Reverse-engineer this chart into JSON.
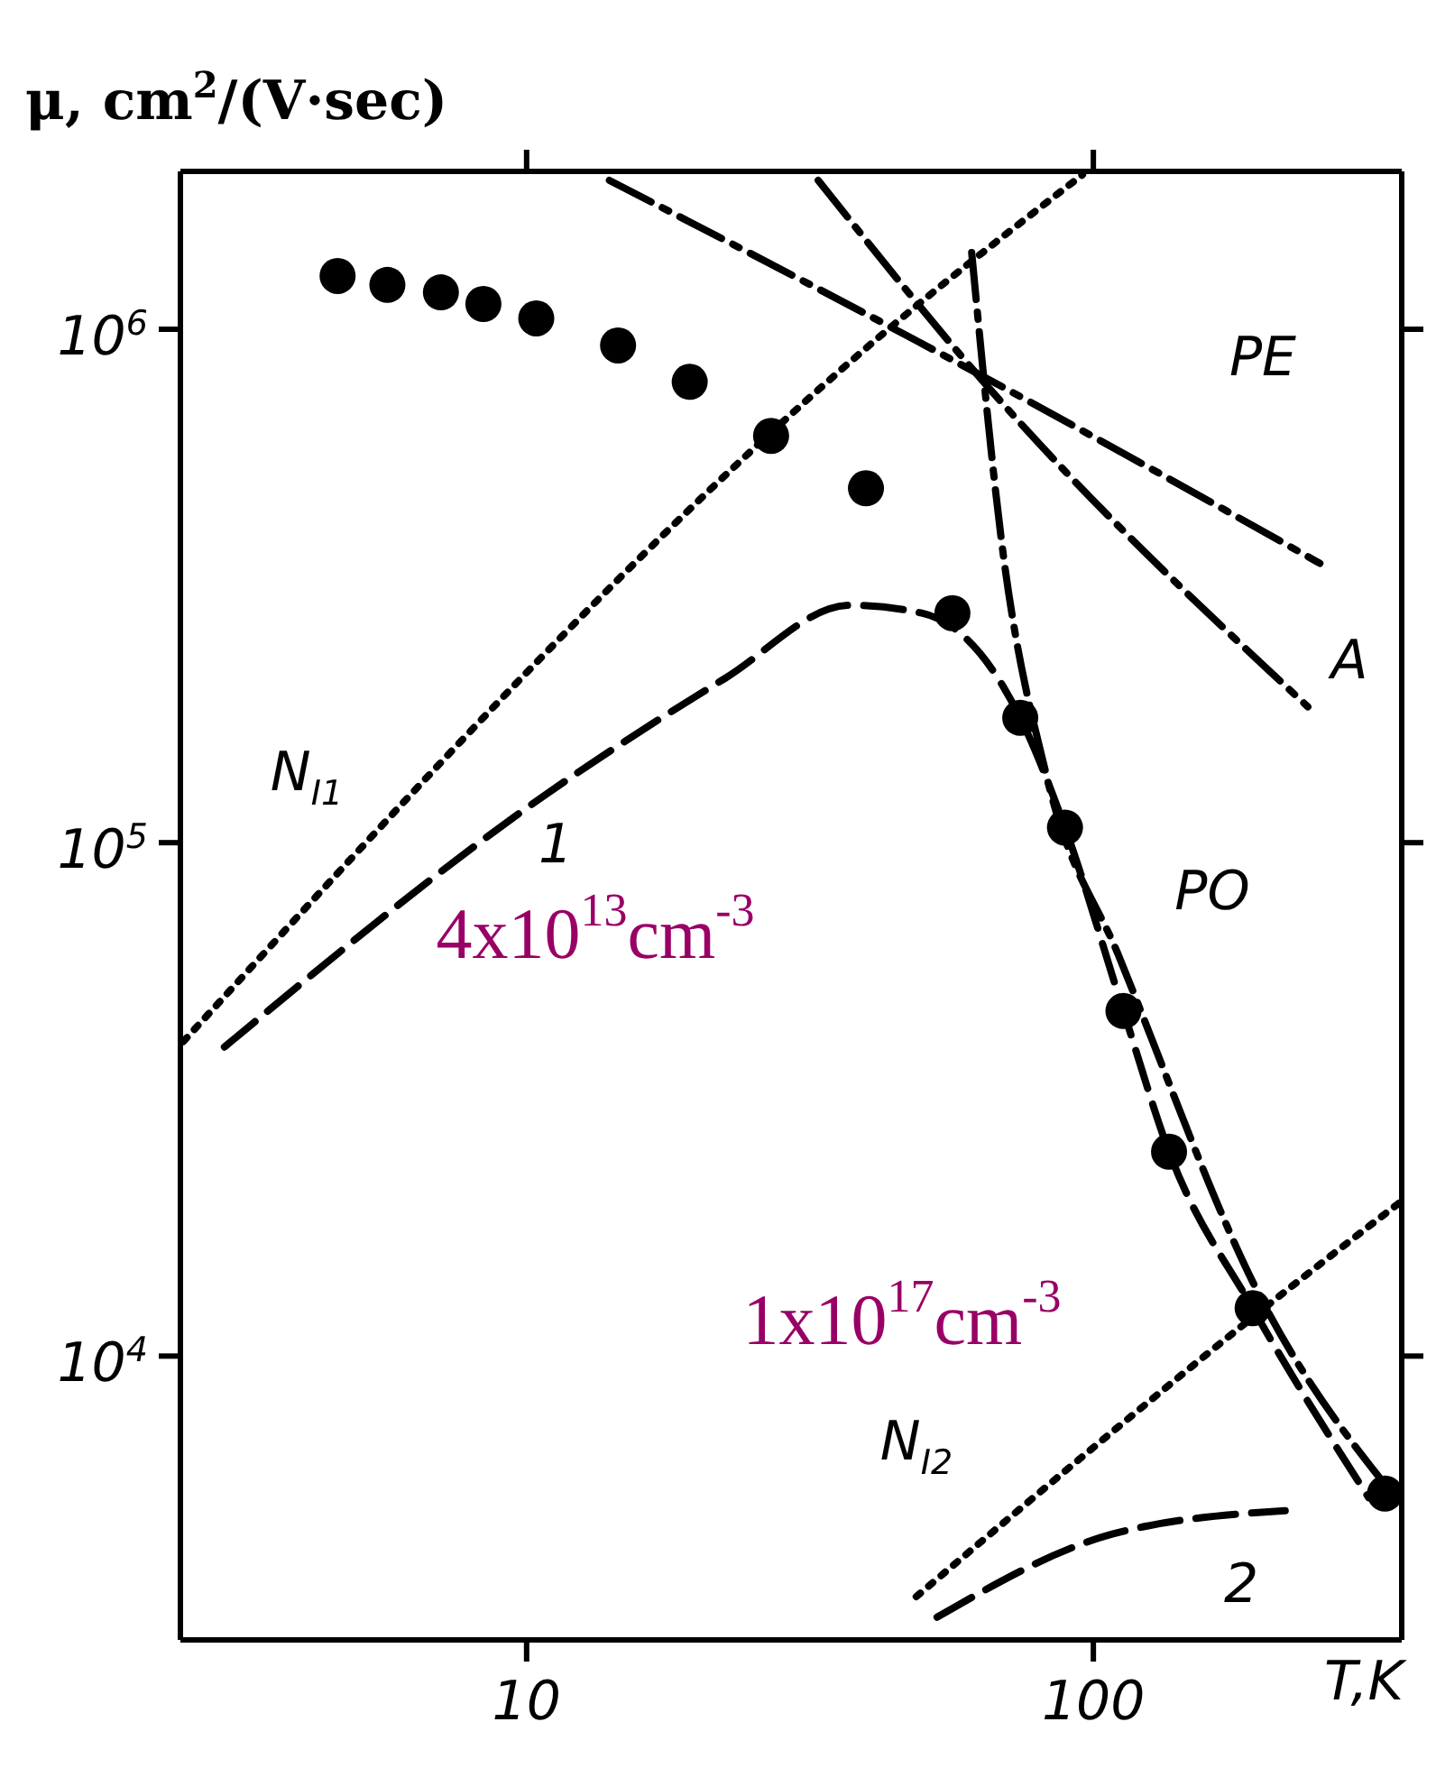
{
  "chart_data": {
    "type": "line",
    "ylabel": "μ, cm$^{2}$/(V·sec)",
    "xlabel": "T,K",
    "log": "xy",
    "xlim": [
      2.45,
      350
    ],
    "xticks": [
      10,
      100
    ],
    "ylim": [
      2800,
      2030000
    ],
    "yticks": [
      {
        "value": 10000,
        "label": "10$^{4}$"
      },
      {
        "value": 100000,
        "label": "10$^{5}$"
      },
      {
        "value": 1000000,
        "label": "10$^{6}$"
      }
    ],
    "legend": false,
    "marker": "none",
    "series": [
      {
        "type": "scatter",
        "marker": "circle",
        "color": "#000000",
        "x": [
          4.64,
          5.68,
          7.06,
          8.39,
          10.4,
          14.5,
          19.4,
          27,
          39.7,
          56.4,
          74.3,
          89.1,
          113,
          136,
          191,
          327
        ],
        "values": [
          1270000,
          1220000,
          1180000,
          1120000,
          1050000,
          930000,
          790000,
          620000,
          490000,
          280000,
          175000,
          107000,
          47000,
          25000,
          12400,
          5400
        ]
      },
      {
        "color": "#000000",
        "line_style": "dotted",
        "x": [
          2.48,
          43,
          95.7
        ],
        "values": [
          41000,
          990000,
          2000000
        ]
      },
      {
        "color": "#000000",
        "line_style": "dashed",
        "x": [
          2.93,
          10.8,
          22.4,
          37.2,
          49.8,
          74.3,
          89.1,
          113,
          136,
          191,
          306
        ],
        "values": [
          40000,
          124000,
          209000,
          290000,
          280000,
          175000,
          107000,
          47000,
          25000,
          12400,
          5300
        ]
      },
      {
        "color": "#000000",
        "line_style": "dashdot",
        "x": [
          61,
          69,
          82.8,
          111,
          198,
          341
        ],
        "values": [
          1410000,
          380000,
          134000,
          60000,
          12900,
          5300
        ]
      },
      {
        "color": "#000000",
        "line_style": "dashdot",
        "x": [
          32.7,
          64,
          239
        ],
        "values": [
          1950000,
          790000,
          184000
        ]
      },
      {
        "color": "#000000",
        "line_style": "dashdot",
        "x": [
          14,
          66.5,
          251
        ],
        "values": [
          1950000,
          790000,
          350000
        ]
      },
      {
        "color": "#000000",
        "line_style": "dotted",
        "x": [
          48.7,
          111,
          191,
          349
        ],
        "values": [
          3400,
          7300,
          11900,
          20000
        ]
      },
      {
        "color": "#000000",
        "line_style": "dashed",
        "x": [
          53,
          108,
          218
        ],
        "values": [
          3100,
          4500,
          5000
        ]
      }
    ],
    "annotations": [
      "N$_{I1}$",
      "1",
      "PE",
      "A",
      "PO",
      "N$_{I2}$",
      "2",
      "4x10$^{13}$cm$^{-3}$",
      "1x10$^{17}$cm$^{-3}$"
    ]
  }
}
